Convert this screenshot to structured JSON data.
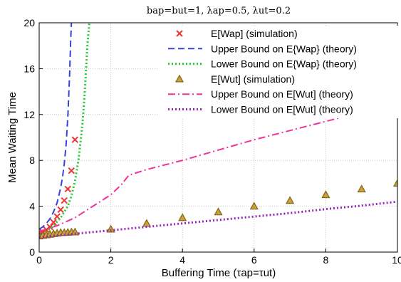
{
  "chart_data": {
    "type": "line",
    "title": "bap=but=1, λap=0.5, λut=0.2",
    "xlabel": "Buffering Time (τap=τut)",
    "ylabel": "Mean Waiting Time",
    "xlim": [
      0,
      10
    ],
    "ylim": [
      0,
      20
    ],
    "xticks": [
      0,
      2,
      4,
      6,
      8,
      10
    ],
    "yticks": [
      0,
      4,
      8,
      12,
      16,
      20
    ],
    "grid": true,
    "legend_position": "top-right",
    "series": [
      {
        "name": "E[Wap] (simulation)",
        "style": "markers",
        "marker": "x",
        "color": "#ee3333",
        "x": [
          0,
          0.1,
          0.2,
          0.3,
          0.4,
          0.5,
          0.6,
          0.7,
          0.8,
          0.9,
          1.0
        ],
        "y": [
          1.6,
          1.75,
          1.95,
          2.2,
          2.6,
          3.1,
          3.7,
          4.5,
          5.5,
          7.1,
          9.8
        ]
      },
      {
        "name": "Upper Bound on E{Wap} (theory)",
        "style": "dashed",
        "color": "#3344dd",
        "x": [
          0,
          0.1,
          0.2,
          0.3,
          0.4,
          0.5,
          0.6,
          0.65,
          0.7,
          0.75,
          0.8,
          0.85,
          0.88,
          0.9
        ],
        "y": [
          2.0,
          2.2,
          2.5,
          2.9,
          3.5,
          4.3,
          5.6,
          6.5,
          7.7,
          9.3,
          11.8,
          15.5,
          18.5,
          20
        ]
      },
      {
        "name": "Lower Bound on E{Wap} (theory)",
        "style": "dotted",
        "color": "#22cc33",
        "x": [
          0,
          0.2,
          0.4,
          0.6,
          0.8,
          0.9,
          1.0,
          1.1,
          1.2,
          1.25,
          1.3,
          1.35,
          1.4
        ],
        "y": [
          1.5,
          1.8,
          2.3,
          3.0,
          4.0,
          4.9,
          6.2,
          8.1,
          10.9,
          12.9,
          15.4,
          18.2,
          20
        ]
      },
      {
        "name": "E[Wut] (simulation)",
        "style": "markers",
        "marker": "triangle",
        "color": "#8a6a1a",
        "x": [
          0,
          0.1,
          0.2,
          0.3,
          0.4,
          0.5,
          0.6,
          0.7,
          0.8,
          0.9,
          1.0,
          2,
          3,
          4,
          5,
          6,
          7,
          8,
          9,
          10
        ],
        "y": [
          1.4,
          1.45,
          1.5,
          1.55,
          1.6,
          1.65,
          1.7,
          1.7,
          1.72,
          1.75,
          1.75,
          2.0,
          2.5,
          3.0,
          3.5,
          4.0,
          4.5,
          5.0,
          5.5,
          6.0
        ]
      },
      {
        "name": "Upper Bound on E[Wut] (theory)",
        "style": "dashdot",
        "color": "#ee3399",
        "x": [
          0,
          0.5,
          1.0,
          1.5,
          2.0,
          2.3,
          2.5,
          3,
          4,
          5,
          6,
          7,
          8,
          9,
          10
        ],
        "y": [
          1.8,
          2.3,
          3.0,
          4.0,
          5.0,
          5.9,
          6.7,
          7.2,
          8.0,
          8.9,
          9.8,
          10.6,
          11.4,
          12.2,
          13.0
        ]
      },
      {
        "name": "Lower Bound on E[Wut] (theory)",
        "style": "dotted",
        "color": "#9922bb",
        "x": [
          0,
          0.5,
          1,
          2,
          3,
          4,
          5,
          6,
          7,
          8,
          9,
          10
        ],
        "y": [
          1.3,
          1.45,
          1.6,
          1.9,
          2.2,
          2.5,
          2.8,
          3.1,
          3.4,
          3.75,
          4.05,
          4.4
        ]
      }
    ]
  }
}
